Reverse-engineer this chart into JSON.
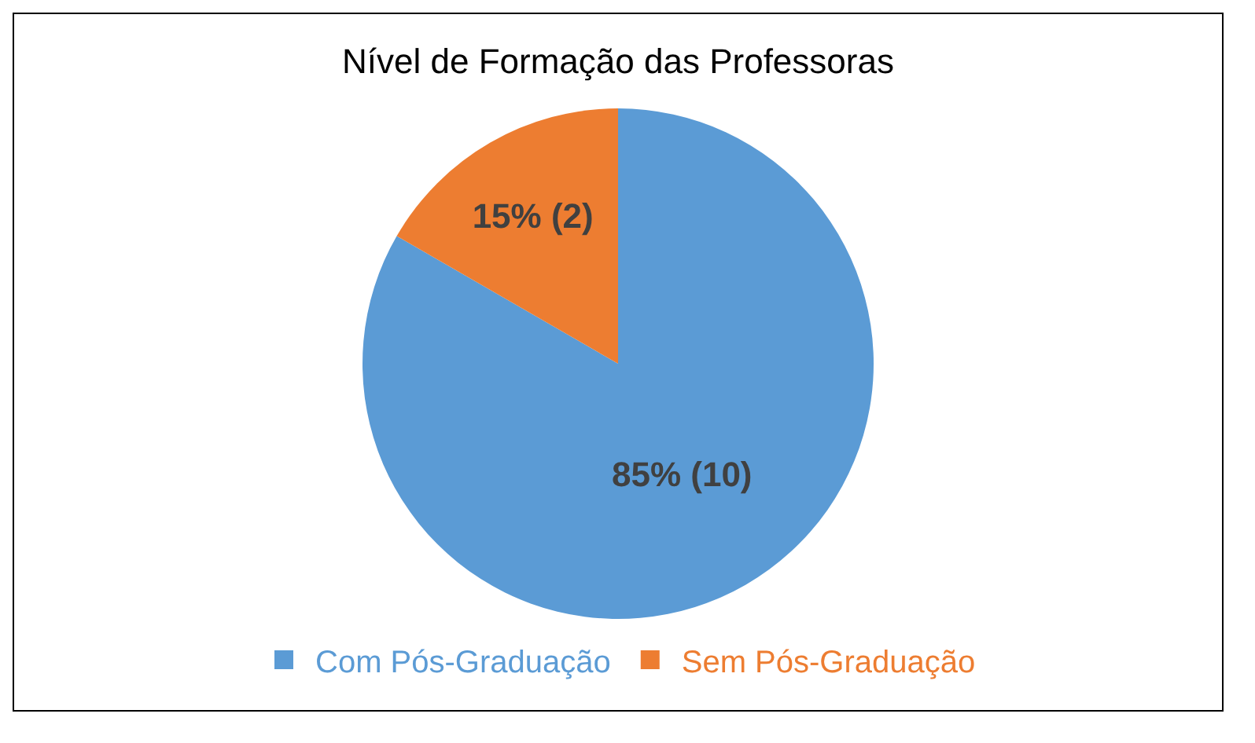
{
  "chart_data": {
    "type": "pie",
    "title": "Nível de Formação das Professoras",
    "categories": [
      "Com Pós-Graduação",
      "Sem Pós-Graduação"
    ],
    "values": [
      10,
      2
    ],
    "value_labels": [
      "85% (10)",
      "15% (2)"
    ],
    "colors": [
      "#5b9bd5",
      "#ed7d31"
    ],
    "legend": "bottom"
  }
}
